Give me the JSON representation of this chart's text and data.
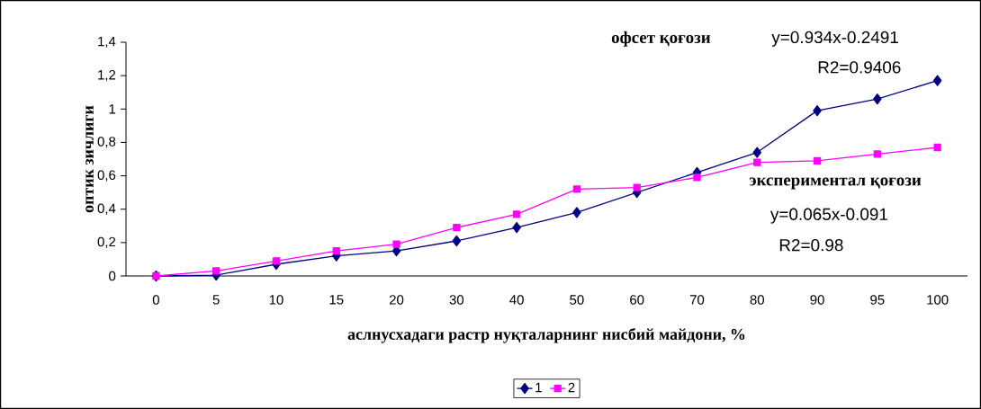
{
  "chart_data": {
    "type": "line",
    "xlabel": "аслнусхадаги растр нуқталарнинг нисбий майдони, %",
    "ylabel": "оптик зичлиги",
    "categories": [
      "0",
      "5",
      "10",
      "15",
      "20",
      "30",
      "40",
      "50",
      "60",
      "70",
      "80",
      "90",
      "95",
      "100"
    ],
    "series": [
      {
        "name": "1",
        "color": "#000080",
        "marker": "diamond",
        "values": [
          0,
          0.005,
          0.07,
          0.12,
          0.15,
          0.21,
          0.29,
          0.38,
          0.5,
          0.62,
          0.74,
          0.99,
          1.06,
          1.17
        ]
      },
      {
        "name": "2",
        "color": "#ff00ff",
        "marker": "square",
        "values": [
          0,
          0.03,
          0.09,
          0.15,
          0.19,
          0.29,
          0.37,
          0.52,
          0.53,
          0.59,
          0.68,
          0.69,
          0.73,
          0.77
        ]
      }
    ],
    "ylim": [
      0,
      1.4
    ],
    "yticks": [
      0,
      {
        "value": 0.2,
        "label": "0,2"
      },
      {
        "value": 0.4,
        "label": "0,4"
      },
      {
        "value": 0.6,
        "label": "0,6"
      },
      {
        "value": 0.8,
        "label": "0,8"
      },
      1,
      {
        "value": 1.2,
        "label": "1,2"
      },
      {
        "value": 1.4,
        "label": "1,4"
      }
    ],
    "legend": "bottom",
    "annotations": [
      "офсет қоғози",
      "y=0.934x-0.2491",
      "R2=0.9406",
      "экспериментал қоғози",
      "y=0.065x-0.091",
      "R2=0.98"
    ]
  }
}
